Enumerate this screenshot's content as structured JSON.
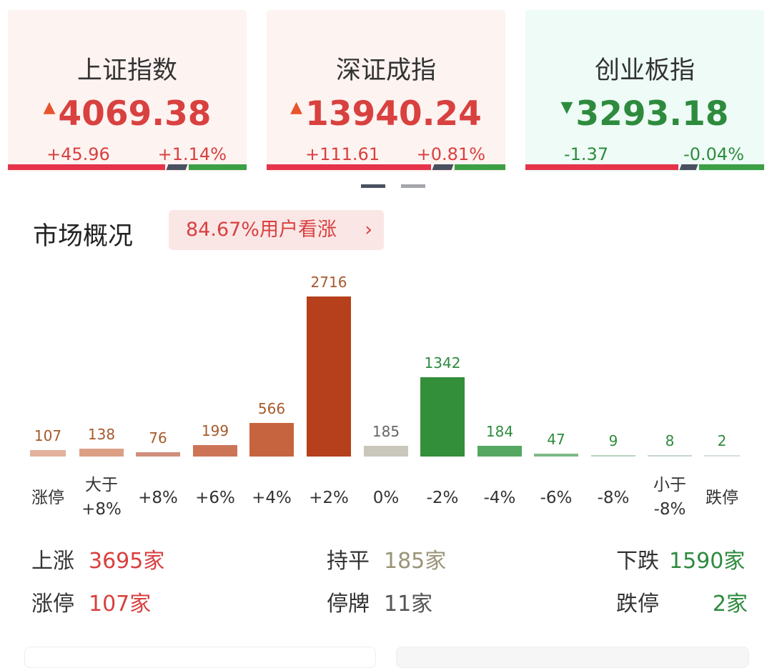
{
  "indices": [
    {
      "name": "上证指数",
      "value": "4069.38",
      "direction": "up",
      "change": "+45.96",
      "percent": "+1.14%",
      "bg": "#fdf3f1",
      "color": "#d8413f",
      "breadth": [
        0.66,
        0.08,
        0.26
      ]
    },
    {
      "name": "深证成指",
      "value": "13940.24",
      "direction": "up",
      "change": "+111.61",
      "percent": "+0.81%",
      "bg": "#fdf3f1",
      "color": "#d8413f",
      "breadth": [
        0.69,
        0.08,
        0.23
      ]
    },
    {
      "name": "创业板指",
      "value": "3293.18",
      "direction": "down",
      "change": "-1.37",
      "percent": "-0.04%",
      "bg": "#eefbf6",
      "color": "#2e8b3e",
      "breadth": [
        0.64,
        0.07,
        0.29
      ]
    }
  ],
  "pager": {
    "pages": 2,
    "active": 0
  },
  "market": {
    "title": "市场概况",
    "sentiment": "84.67%用户看涨",
    "chevron_icon": "chevron-right-icon"
  },
  "chart_data": {
    "type": "bar",
    "categories": [
      "涨停",
      "大于+8%",
      "+8%",
      "+6%",
      "+4%",
      "+2%",
      "0%",
      "-2%",
      "-4%",
      "-6%",
      "-8%",
      "小于-8%",
      "跌停"
    ],
    "category_lines": [
      [
        "涨停"
      ],
      [
        "大于",
        "+8%"
      ],
      [
        "+8%"
      ],
      [
        "+6%"
      ],
      [
        "+4%"
      ],
      [
        "+2%"
      ],
      [
        "0%"
      ],
      [
        "-2%"
      ],
      [
        "-4%"
      ],
      [
        "-6%"
      ],
      [
        "-8%"
      ],
      [
        "小于",
        "-8%"
      ],
      [
        "跌停"
      ]
    ],
    "values": [
      107,
      138,
      76,
      199,
      566,
      2716,
      185,
      1342,
      184,
      47,
      9,
      8,
      2
    ],
    "colors": [
      "#e3b19c",
      "#dba084",
      "#cf8f7b",
      "#cd7457",
      "#c6643f",
      "#b5401b",
      "#c9c7bb",
      "#348f3a",
      "#55a762",
      "#7cb987",
      "#b8d2be",
      "#c6d6ca",
      "#d6dfd8"
    ],
    "label_colors": [
      "#a65a2c",
      "#a65a2c",
      "#a65a2c",
      "#a65a2c",
      "#a65a2c",
      "#a65a2c",
      "#666666",
      "#2e8b3e",
      "#2e8b3e",
      "#2e8b3e",
      "#2e8b3e",
      "#2e8b3e",
      "#2e8b3e"
    ]
  },
  "stats": [
    {
      "label": "上涨",
      "value": "3695家",
      "color": "#d8413f"
    },
    {
      "label": "持平",
      "value": "185家",
      "color": "#9a9478"
    },
    {
      "label": "下跌",
      "value": "1590家",
      "color": "#2e8b3e"
    },
    {
      "label": "涨停",
      "value": "107家",
      "color": "#d8413f"
    },
    {
      "label": "停牌",
      "value": "11家",
      "color": "#555555"
    },
    {
      "label": "跌停",
      "value": "2家",
      "color": "#2e8b3e"
    }
  ]
}
